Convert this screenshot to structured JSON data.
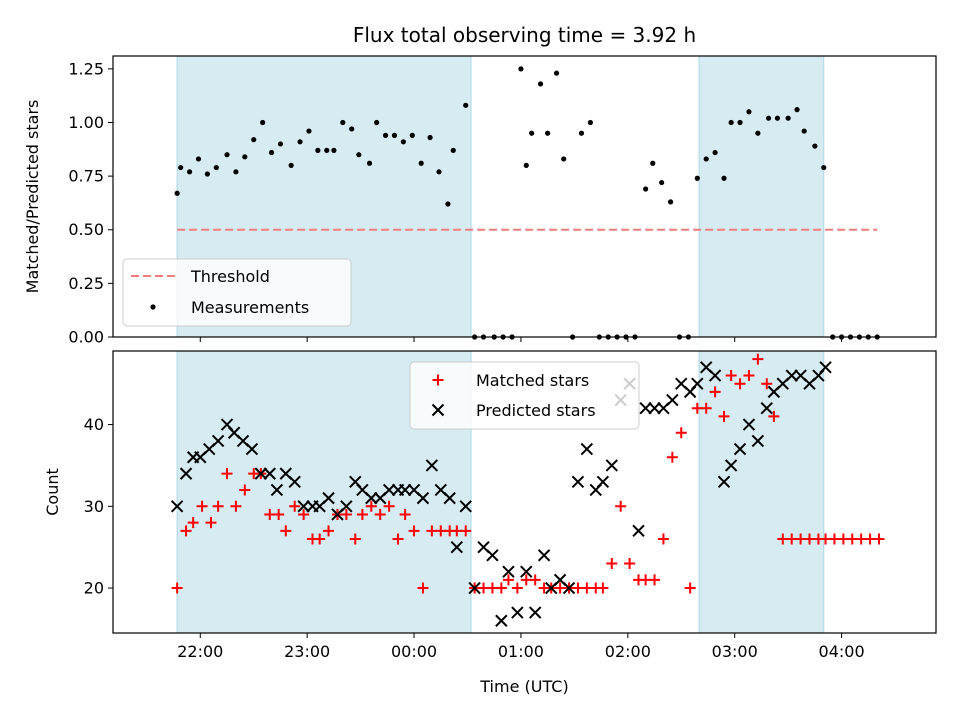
{
  "chart_data": [
    {
      "type": "scatter",
      "title": "Flux total observing time = 3.92 h",
      "xlabel": "",
      "ylabel": "Matched/Predicted stars",
      "ylim": [
        0,
        1.31
      ],
      "xlim": [
        "21:11",
        "04:53"
      ],
      "yticks": [
        "0.00",
        "0.25",
        "0.50",
        "0.75",
        "1.00",
        "1.25"
      ],
      "legend_position": "lower-left",
      "shaded_intervals": [
        [
          "21:47",
          "00:32"
        ],
        [
          "02:40",
          "03:50"
        ]
      ],
      "threshold": {
        "name": "Threshold",
        "value": 0.5,
        "x_range": [
          "21:47",
          "04:20"
        ],
        "color": "#f08080"
      },
      "series": [
        {
          "name": "Measurements",
          "color": "#000000",
          "x": [
            "21:47",
            "21:49",
            "21:54",
            "21:59",
            "22:04",
            "22:09",
            "22:15",
            "22:20",
            "22:25",
            "22:30",
            "22:35",
            "22:40",
            "22:45",
            "22:51",
            "22:56",
            "23:01",
            "23:06",
            "23:11",
            "23:15",
            "23:20",
            "23:25",
            "23:29",
            "23:35",
            "23:39",
            "23:44",
            "23:49",
            "23:54",
            "23:59",
            "24:04",
            "24:09",
            "24:14",
            "24:19",
            "24:22",
            "24:29",
            "24:34",
            "24:39",
            "24:45",
            "24:50",
            "24:55",
            "25:00",
            "25:03",
            "25:06",
            "25:11",
            "25:15",
            "25:20",
            "25:24",
            "25:29",
            "25:34",
            "25:39",
            "25:44",
            "25:49",
            "25:54",
            "25:59",
            "26:04",
            "26:10",
            "26:14",
            "26:19",
            "26:24",
            "26:29",
            "26:34",
            "26:39",
            "26:44",
            "26:49",
            "26:54",
            "26:58",
            "27:03",
            "27:08",
            "27:13",
            "27:19",
            "27:24",
            "27:30",
            "27:35",
            "27:39",
            "27:45",
            "27:50",
            "27:55",
            "28:00",
            "28:05",
            "28:10",
            "28:15",
            "28:20"
          ],
          "y": [
            0.67,
            0.79,
            0.77,
            0.83,
            0.76,
            0.79,
            0.85,
            0.77,
            0.84,
            0.92,
            1.0,
            0.86,
            0.9,
            0.8,
            0.91,
            0.96,
            0.87,
            0.87,
            0.87,
            1.0,
            0.97,
            0.85,
            0.81,
            1.0,
            0.94,
            0.94,
            0.91,
            0.94,
            0.81,
            0.93,
            0.77,
            0.62,
            0.87,
            1.08,
            0,
            0,
            0,
            0,
            0,
            1.25,
            0.8,
            0.95,
            1.18,
            0.95,
            1.23,
            0.83,
            0,
            0.95,
            1.0,
            0,
            0,
            0,
            0,
            0,
            0.69,
            0.81,
            0.72,
            0.63,
            0,
            0,
            0.74,
            0.83,
            0.86,
            0.74,
            1.0,
            1.0,
            1.05,
            0.95,
            1.02,
            1.02,
            1.02,
            1.06,
            0.96,
            0.89,
            0.79,
            0,
            0,
            0,
            0,
            0,
            0
          ]
        }
      ]
    },
    {
      "type": "scatter",
      "xlabel": "Time (UTC)",
      "ylabel": "Count",
      "ylim": [
        14.5,
        49
      ],
      "xlim": [
        "21:11",
        "04:53"
      ],
      "x_tick_labels": [
        "22:00",
        "23:00",
        "00:00",
        "01:00",
        "02:00",
        "03:00",
        "04:00"
      ],
      "y_tick_labels": [
        "20",
        "30",
        "40"
      ],
      "legend_position": "top-center",
      "shaded_intervals": [
        [
          "21:47",
          "00:32"
        ],
        [
          "02:40",
          "03:50"
        ]
      ],
      "series": [
        {
          "name": "Matched stars",
          "color": "#ff0000",
          "marker": "plus",
          "x": [
            "21:47",
            "21:52",
            "21:56",
            "22:01",
            "22:06",
            "22:10",
            "22:15",
            "22:20",
            "22:25",
            "22:30",
            "22:34",
            "22:39",
            "22:44",
            "22:48",
            "22:53",
            "22:58",
            "23:03",
            "23:07",
            "23:12",
            "23:17",
            "23:22",
            "23:27",
            "23:31",
            "23:36",
            "23:41",
            "23:46",
            "23:51",
            "23:55",
            "24:00",
            "24:05",
            "24:10",
            "24:15",
            "24:20",
            "24:24",
            "24:29",
            "24:34",
            "24:39",
            "24:44",
            "24:49",
            "24:53",
            "24:58",
            "25:03",
            "25:08",
            "25:13",
            "25:17",
            "25:22",
            "25:27",
            "25:32",
            "25:37",
            "25:42",
            "25:46",
            "25:51",
            "25:56",
            "26:01",
            "26:06",
            "26:10",
            "26:15",
            "26:20",
            "26:25",
            "26:30",
            "26:35",
            "26:39",
            "26:44",
            "26:49",
            "26:54",
            "26:58",
            "27:03",
            "27:08",
            "27:13",
            "27:18",
            "27:22",
            "27:27",
            "27:32",
            "27:37",
            "27:42",
            "27:47",
            "27:51",
            "27:56",
            "28:01",
            "28:06",
            "28:11",
            "28:16",
            "28:21"
          ],
          "y": [
            20,
            27,
            28,
            30,
            28,
            30,
            34,
            30,
            32,
            34,
            34,
            29,
            29,
            27,
            30,
            29,
            26,
            26,
            27,
            29,
            29,
            26,
            29,
            30,
            29,
            30,
            26,
            29,
            27,
            20,
            27,
            27,
            27,
            27,
            27,
            20,
            20,
            20,
            20,
            21,
            20,
            21,
            21,
            20,
            20,
            20,
            20,
            20,
            20,
            20,
            20,
            23,
            30,
            23,
            21,
            21,
            21,
            26,
            36,
            39,
            20,
            42,
            42,
            44,
            41,
            46,
            45,
            46,
            48,
            45,
            41,
            26,
            26,
            26,
            26,
            26,
            26,
            26,
            26,
            26,
            26,
            26,
            26
          ]
        },
        {
          "name": "Predicted stars",
          "color": "#000000",
          "marker": "x",
          "x": [
            "21:47",
            "21:52",
            "21:56",
            "22:00",
            "22:05",
            "22:10",
            "22:15",
            "22:19",
            "22:24",
            "22:29",
            "22:34",
            "22:39",
            "22:43",
            "22:48",
            "22:53",
            "22:58",
            "23:03",
            "23:07",
            "23:12",
            "23:17",
            "23:22",
            "23:27",
            "23:31",
            "23:36",
            "23:41",
            "23:46",
            "23:51",
            "23:55",
            "24:00",
            "24:05",
            "24:10",
            "24:15",
            "24:20",
            "24:24",
            "24:29",
            "24:34",
            "24:39",
            "24:44",
            "24:49",
            "24:53",
            "24:58",
            "25:03",
            "25:08",
            "25:13",
            "25:17",
            "25:22",
            "25:27",
            "25:32",
            "25:37",
            "25:42",
            "25:46",
            "25:51",
            "25:56",
            "26:01",
            "26:06",
            "26:10",
            "26:15",
            "26:20",
            "26:25",
            "26:30",
            "26:35",
            "26:39",
            "26:44",
            "26:49",
            "26:54",
            "26:58",
            "27:03",
            "27:08",
            "27:13",
            "27:18",
            "27:22",
            "27:27",
            "27:32",
            "27:37",
            "27:42",
            "27:47",
            "27:51"
          ],
          "y": [
            30,
            34,
            36,
            36,
            37,
            38,
            40,
            39,
            38,
            37,
            34,
            34,
            32,
            34,
            33,
            30,
            30,
            30,
            31,
            29,
            30,
            33,
            32,
            31,
            31,
            32,
            32,
            32,
            32,
            31,
            35,
            32,
            31,
            25,
            30,
            20,
            25,
            24,
            16,
            22,
            17,
            22,
            17,
            24,
            20,
            21,
            20,
            33,
            37,
            32,
            33,
            35,
            43,
            45,
            27,
            42,
            42,
            42,
            43,
            45,
            44,
            45,
            47,
            46,
            33,
            35,
            37,
            40,
            38,
            42,
            44,
            45,
            46,
            46,
            45,
            46,
            47
          ]
        }
      ]
    }
  ]
}
